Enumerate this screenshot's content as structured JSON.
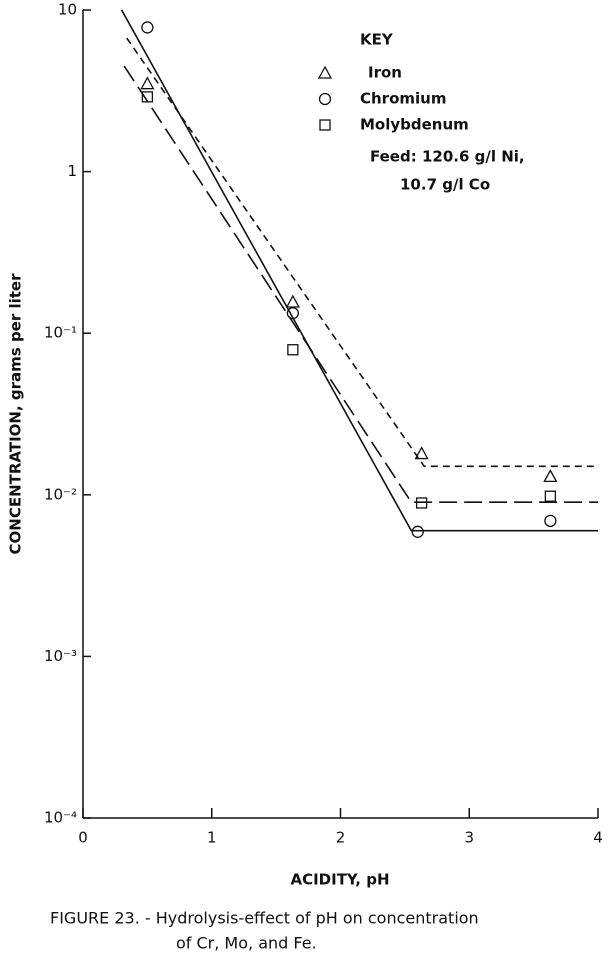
{
  "chart_data": {
    "type": "scatter",
    "caption": [
      "FIGURE 23. - Hydrolysis-effect of pH on concentration",
      "of Cr, Mo, and Fe."
    ],
    "x_label": "ACIDITY, pH",
    "y_label": "CONCENTRATION, grams per liter",
    "legend_title": "KEY",
    "annotation": [
      "Feed: 120.6 g/l Ni,",
      "10.7 g/l Co"
    ],
    "log_y": true,
    "xlim": [
      0,
      4
    ],
    "xticks": [
      0,
      1,
      2,
      3,
      4
    ],
    "ylim": [
      0.0001,
      10
    ],
    "yticks": [
      {
        "value": 0.0001,
        "label": "10⁻⁴"
      },
      {
        "value": 0.001,
        "label": "10⁻³"
      },
      {
        "value": 0.01,
        "label": "10⁻²"
      },
      {
        "value": 0.1,
        "label": "10⁻¹"
      },
      1,
      10
    ],
    "color": "#111111",
    "series": [
      {
        "name": "Iron",
        "marker": "triangle",
        "line_style": "short-dash",
        "x": [
          0.5,
          1.63,
          2.63,
          3.63
        ],
        "values": [
          3.5,
          0.156,
          0.018,
          0.013
        ],
        "fit": {
          "x": [
            0.34,
            2.65,
            4
          ],
          "values": [
            6.7,
            0.015,
            0.015
          ]
        }
      },
      {
        "name": "Chromium",
        "marker": "circle",
        "line_style": "solid",
        "x": [
          0.5,
          1.63,
          2.6,
          3.63
        ],
        "values": [
          7.8,
          0.133,
          0.0059,
          0.0069
        ],
        "fit": {
          "x": [
            0.3,
            2.55,
            4
          ],
          "values": [
            10,
            0.006,
            0.006
          ]
        }
      },
      {
        "name": "Molybdenum",
        "marker": "square",
        "line_style": "long-dash",
        "x": [
          0.5,
          1.63,
          2.63,
          3.63
        ],
        "values": [
          2.9,
          0.079,
          0.0089,
          0.0098
        ],
        "fit": {
          "x": [
            0.32,
            2.55,
            4
          ],
          "values": [
            4.5,
            0.009,
            0.009
          ]
        }
      }
    ]
  }
}
